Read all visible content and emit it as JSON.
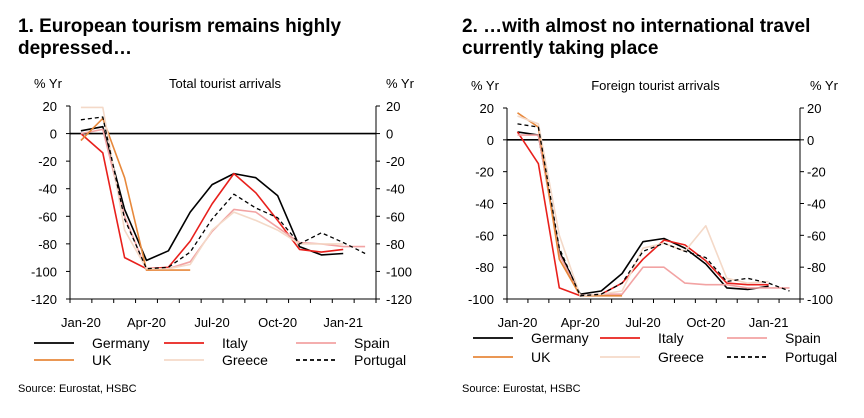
{
  "charts": [
    {
      "title": "1. European tourism remains highly depressed…",
      "source": "Source: Eurostat, HSBC"
    },
    {
      "title": "2. …with almost no international travel currently taking place",
      "source": "Source: Eurostat, HSBC"
    }
  ],
  "chart_data": [
    {
      "type": "line",
      "title": "Total tourist arrivals",
      "ylabel_left": "% Yr",
      "ylabel_right": "% Yr",
      "ylim": [
        -120,
        20
      ],
      "yticks": [
        20,
        0,
        -20,
        -40,
        -60,
        -80,
        -100,
        -120
      ],
      "xticks": [
        "Jan-20",
        "Apr-20",
        "Jul-20",
        "Oct-20",
        "Jan-21"
      ],
      "x": [
        "Jan-20",
        "Feb-20",
        "Mar-20",
        "Apr-20",
        "May-20",
        "Jun-20",
        "Jul-20",
        "Aug-20",
        "Sep-20",
        "Oct-20",
        "Nov-20",
        "Dec-20",
        "Jan-21",
        "Feb-21"
      ],
      "series": [
        {
          "name": "Germany",
          "color": "#000000",
          "dash": "solid",
          "values": [
            2,
            5,
            -55,
            -92,
            -85,
            -57,
            -37,
            -29,
            -32,
            -45,
            -82,
            -88,
            -87,
            null
          ]
        },
        {
          "name": "Italy",
          "color": "#e8201c",
          "dash": "solid",
          "values": [
            0,
            -14,
            -90,
            -98,
            -97,
            -78,
            -51,
            -29,
            -43,
            -63,
            -84,
            -86,
            -84,
            null
          ]
        },
        {
          "name": "Spain",
          "color": "#f2a3a3",
          "dash": "solid",
          "values": [
            0,
            3,
            -60,
            -99,
            -98,
            -93,
            -71,
            -55,
            -57,
            -68,
            -79,
            -80,
            -82,
            -82
          ]
        },
        {
          "name": "UK",
          "color": "#e7883b",
          "dash": "solid",
          "values": [
            -5,
            11,
            -32,
            -99,
            -99,
            -99,
            null,
            null,
            null,
            null,
            null,
            null,
            null,
            null
          ]
        },
        {
          "name": "Greece",
          "color": "#f4d9c8",
          "dash": "solid",
          "values": [
            19,
            19,
            -70,
            -98,
            -98,
            -95,
            -70,
            -57,
            -63,
            -70,
            -80,
            -80,
            -80,
            null
          ]
        },
        {
          "name": "Portugal",
          "color": "#000000",
          "dash": "dashed",
          "values": [
            10,
            12,
            -62,
            -98,
            -97,
            -86,
            -62,
            -44,
            -54,
            -61,
            -80,
            -72,
            -79,
            -87
          ]
        }
      ],
      "legend": [
        "Germany",
        "Italy",
        "Spain",
        "UK",
        "Greece",
        "Portugal"
      ]
    },
    {
      "type": "line",
      "title": "Foreign tourist arrivals",
      "ylabel_left": "% Yr",
      "ylabel_right": "% Yr",
      "ylim": [
        -100,
        20
      ],
      "yticks": [
        20,
        0,
        -20,
        -40,
        -60,
        -80,
        -100
      ],
      "xticks": [
        "Jan-20",
        "Apr-20",
        "Jul-20",
        "Oct-20",
        "Jan-21"
      ],
      "x": [
        "Jan-20",
        "Feb-20",
        "Mar-20",
        "Apr-20",
        "May-20",
        "Jun-20",
        "Jul-20",
        "Aug-20",
        "Sep-20",
        "Oct-20",
        "Nov-20",
        "Dec-20",
        "Jan-21",
        "Feb-21"
      ],
      "series": [
        {
          "name": "Germany",
          "color": "#000000",
          "dash": "solid",
          "values": [
            5,
            3,
            -70,
            -97,
            -95,
            -84,
            -64,
            -62,
            -68,
            -78,
            -93,
            -94,
            -92,
            null
          ]
        },
        {
          "name": "Italy",
          "color": "#e8201c",
          "dash": "solid",
          "values": [
            5,
            -15,
            -93,
            -98,
            -97,
            -90,
            -75,
            -63,
            -66,
            -76,
            -90,
            -91,
            -91,
            null
          ]
        },
        {
          "name": "Spain",
          "color": "#f2a3a3",
          "dash": "solid",
          "values": [
            3,
            3,
            -72,
            -98,
            -97,
            -97,
            -80,
            -80,
            -90,
            -91,
            -91,
            -93,
            -93,
            -93
          ]
        },
        {
          "name": "UK",
          "color": "#e7883b",
          "dash": "solid",
          "values": [
            17,
            8,
            -75,
            -98,
            -98,
            -98,
            null,
            null,
            null,
            null,
            null,
            null,
            null,
            null
          ]
        },
        {
          "name": "Greece",
          "color": "#f4d9c8",
          "dash": "solid",
          "values": [
            15,
            10,
            -60,
            -98,
            -97,
            -95,
            -68,
            -65,
            -70,
            -54,
            -87,
            -90,
            -89,
            null
          ]
        },
        {
          "name": "Portugal",
          "color": "#000000",
          "dash": "dashed",
          "values": [
            10,
            8,
            -68,
            -98,
            -97,
            -90,
            -70,
            -65,
            -70,
            -74,
            -89,
            -87,
            -90,
            -95
          ]
        }
      ],
      "legend": [
        "Germany",
        "Italy",
        "Spain",
        "UK",
        "Greece",
        "Portugal"
      ]
    }
  ]
}
